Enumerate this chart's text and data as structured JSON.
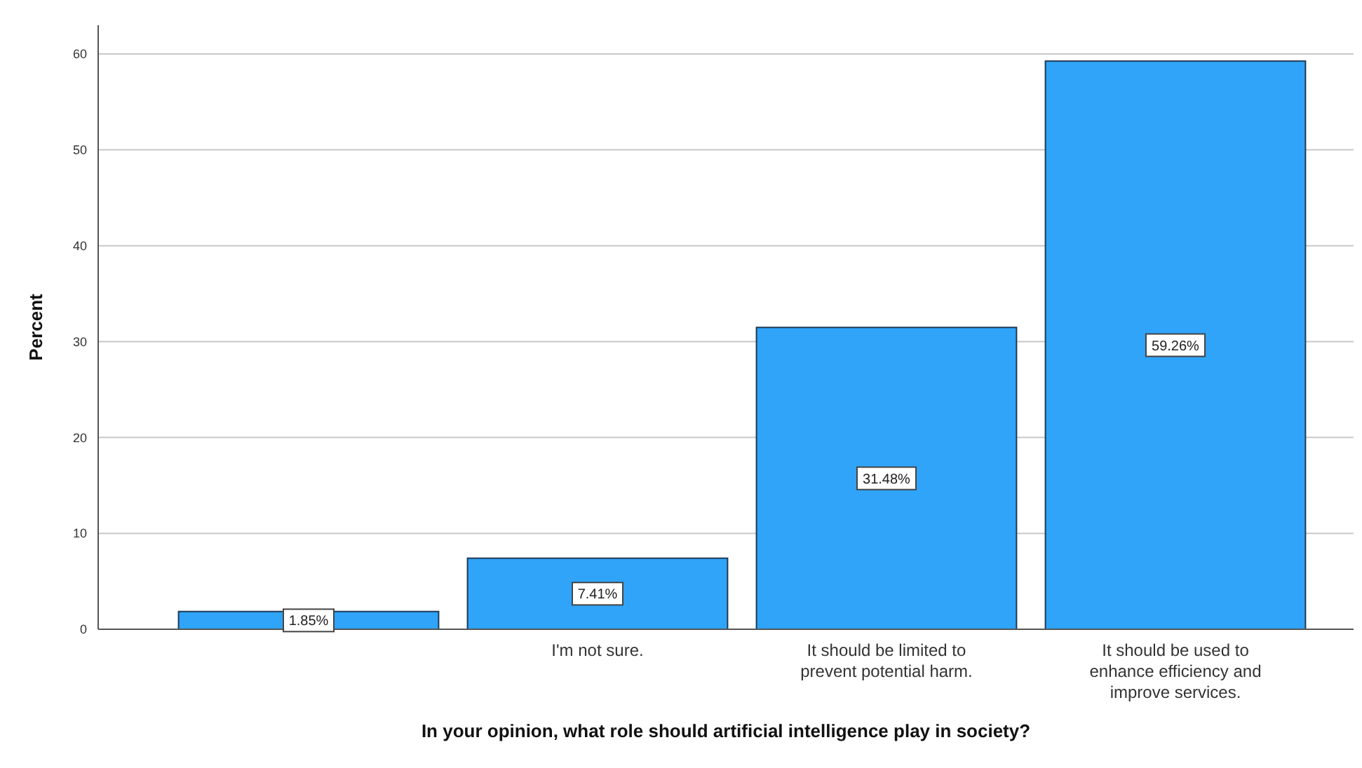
{
  "chart_data": {
    "type": "bar",
    "xlabel": "In your opinion, what role should artificial intelligence play in society?",
    "ylabel": "Percent",
    "categories": [
      null,
      "I'm not sure.",
      "It should be limited to prevent potential harm.",
      "It should be used to enhance efficiency and improve services."
    ],
    "values": [
      1.85,
      7.41,
      31.48,
      59.26
    ],
    "value_labels": [
      "1.85%",
      "7.41%",
      "31.48%",
      "59.26%"
    ],
    "color": "#2fa4f9",
    "ylim": [
      0,
      63
    ],
    "yticks": [
      0,
      10,
      20,
      30,
      40,
      50,
      60
    ],
    "grid": "y"
  }
}
